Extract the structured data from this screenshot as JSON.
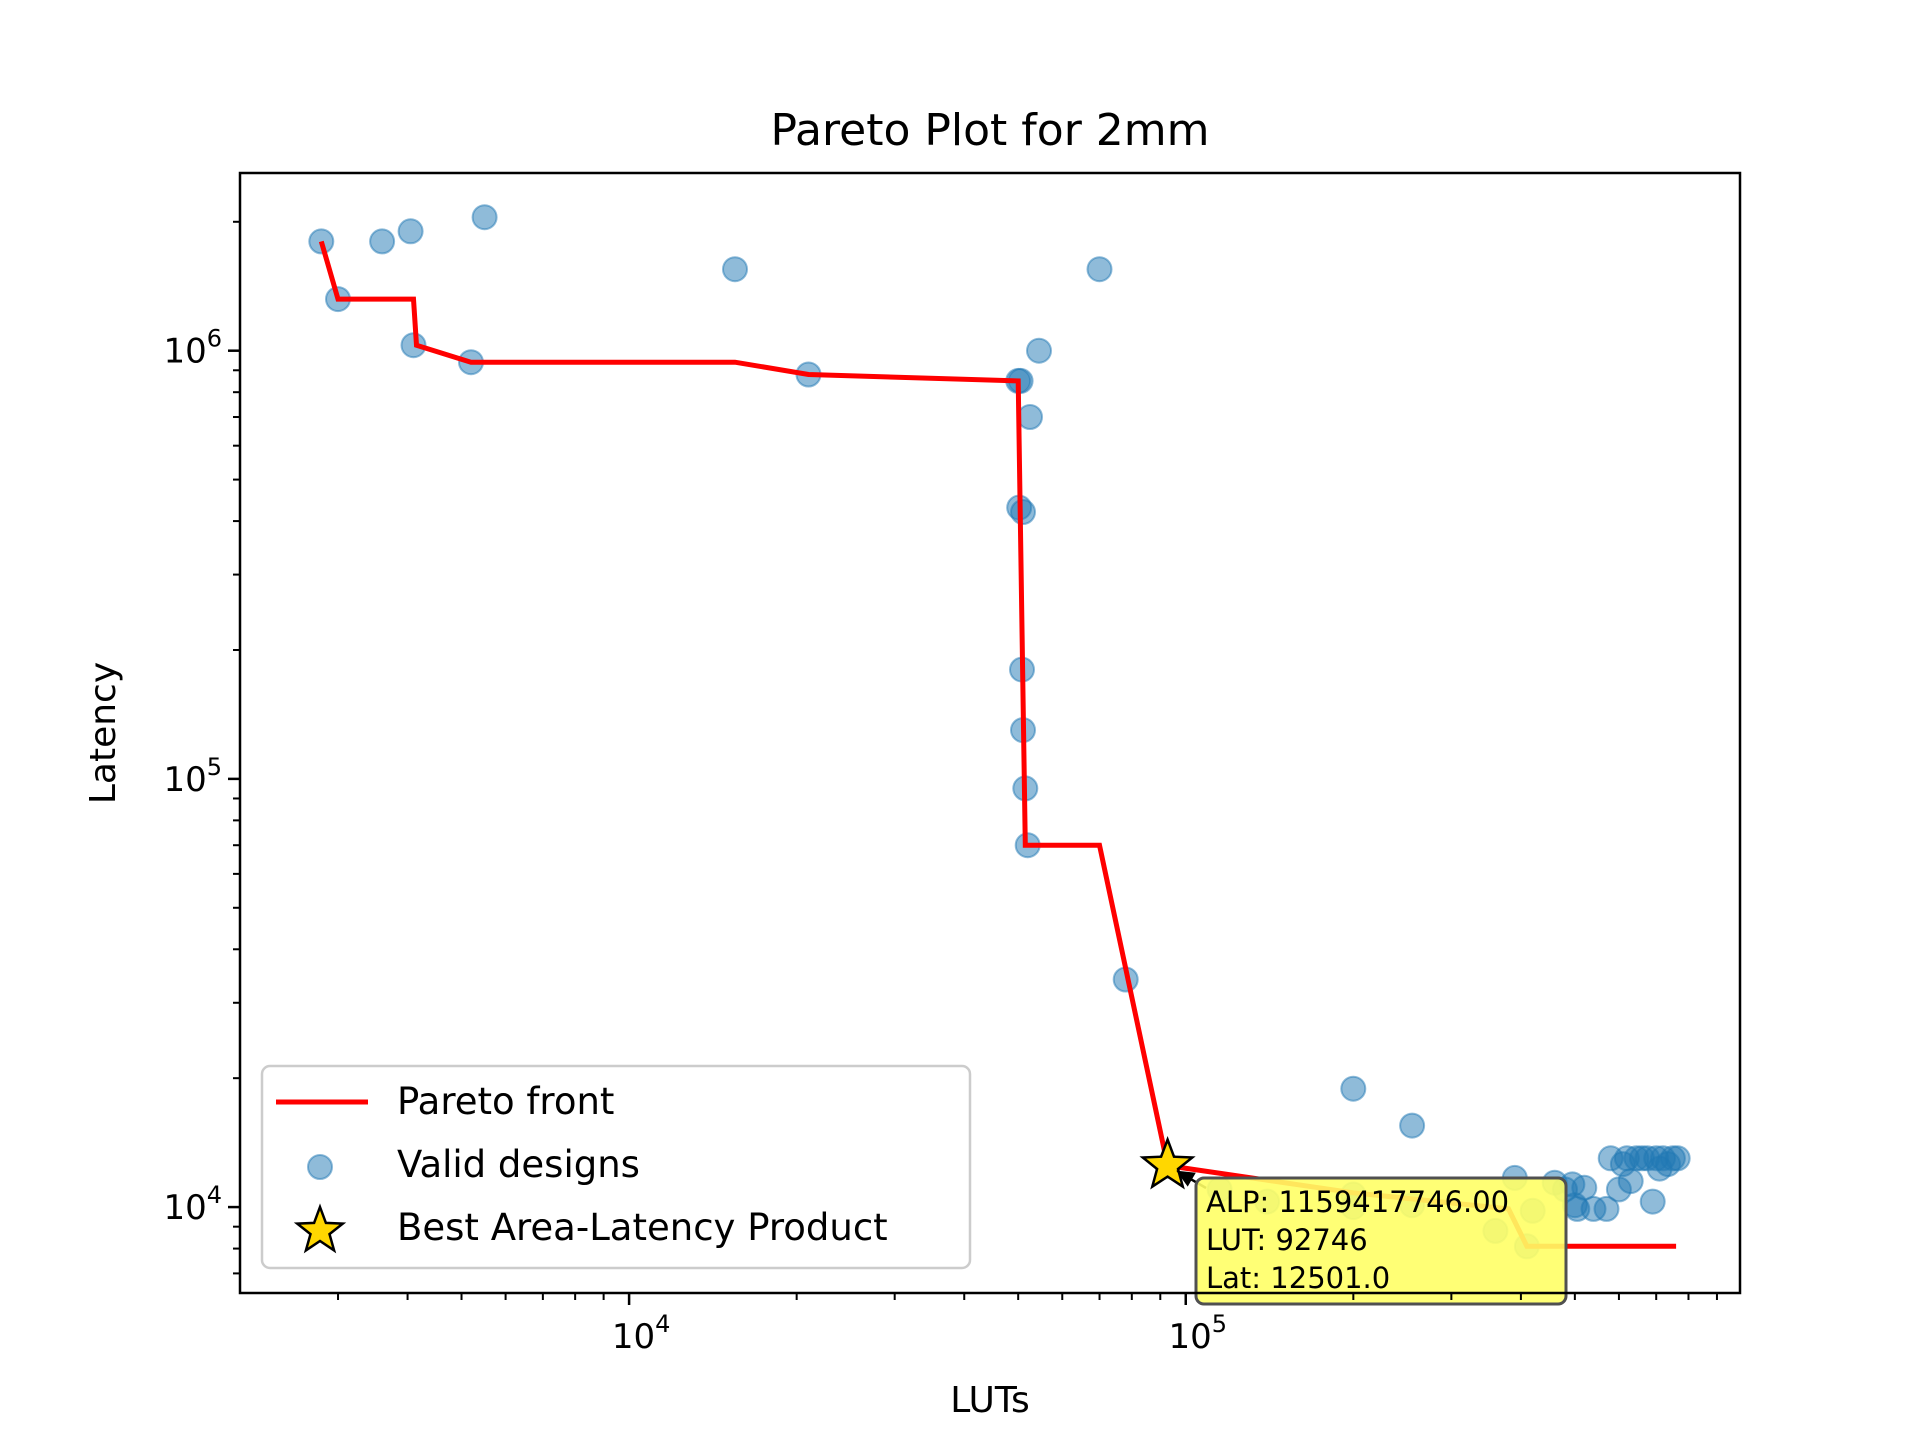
{
  "chart_data": {
    "type": "scatter",
    "title": "Pareto Plot for 2mm",
    "xlabel": "LUTs",
    "ylabel": "Latency",
    "x_scale": "log",
    "y_scale": "log",
    "xlim": [
      2000,
      990000
    ],
    "ylim": [
      6300,
      2600000
    ],
    "x_ticks": [
      {
        "value": 10000,
        "base": "10",
        "exp": "4"
      },
      {
        "value": 100000,
        "base": "10",
        "exp": "5"
      }
    ],
    "y_ticks": [
      {
        "value": 10000,
        "base": "10",
        "exp": "4"
      },
      {
        "value": 100000,
        "base": "10",
        "exp": "5"
      },
      {
        "value": 1000000,
        "base": "10",
        "exp": "6"
      }
    ],
    "grid": false,
    "legend_position": "lower-left",
    "legend": [
      {
        "key": "pareto",
        "label": "Pareto front"
      },
      {
        "key": "valid",
        "label": "Valid designs"
      },
      {
        "key": "best",
        "label": "Best Area-Latency Product"
      }
    ],
    "pareto_front": [
      [
        2800,
        1800000
      ],
      [
        3000,
        1320000
      ],
      [
        4100,
        1320000
      ],
      [
        4150,
        1030000
      ],
      [
        5200,
        940000
      ],
      [
        15500,
        940000
      ],
      [
        21000,
        880000
      ],
      [
        50000,
        850000
      ],
      [
        51500,
        70000
      ],
      [
        70000,
        70000
      ],
      [
        92746,
        12501
      ],
      [
        200000,
        10800
      ],
      [
        380000,
        9900
      ],
      [
        410000,
        8100
      ],
      [
        760000,
        8100
      ]
    ],
    "valid_designs": [
      [
        2800,
        1800000
      ],
      [
        3000,
        1320000
      ],
      [
        3600,
        1800000
      ],
      [
        4050,
        1900000
      ],
      [
        4100,
        1030000
      ],
      [
        5200,
        940000
      ],
      [
        5500,
        2050000
      ],
      [
        15500,
        1550000
      ],
      [
        21000,
        880000
      ],
      [
        50000,
        850000
      ],
      [
        50500,
        850000
      ],
      [
        50200,
        430000
      ],
      [
        51000,
        420000
      ],
      [
        50800,
        180000
      ],
      [
        51000,
        130000
      ],
      [
        51500,
        95000
      ],
      [
        52000,
        70000
      ],
      [
        52500,
        700000
      ],
      [
        54500,
        1000000
      ],
      [
        70000,
        1550000
      ],
      [
        78000,
        34000
      ],
      [
        92746,
        12501
      ],
      [
        115000,
        11000
      ],
      [
        140000,
        10300
      ],
      [
        200000,
        10700
      ],
      [
        200000,
        18900
      ],
      [
        200000,
        10000
      ],
      [
        255000,
        15500
      ],
      [
        255000,
        10100
      ],
      [
        360000,
        8800
      ],
      [
        390000,
        11700
      ],
      [
        410000,
        8100
      ],
      [
        420000,
        9800
      ],
      [
        460000,
        11400
      ],
      [
        480000,
        11000
      ],
      [
        495000,
        11300
      ],
      [
        500000,
        10100
      ],
      [
        505000,
        9900
      ],
      [
        520000,
        11100
      ],
      [
        540000,
        9900
      ],
      [
        570000,
        9900
      ],
      [
        580000,
        13000
      ],
      [
        600000,
        11000
      ],
      [
        610000,
        12600
      ],
      [
        620000,
        13000
      ],
      [
        630000,
        11500
      ],
      [
        645000,
        13000
      ],
      [
        660000,
        13000
      ],
      [
        675000,
        13000
      ],
      [
        690000,
        10300
      ],
      [
        700000,
        13000
      ],
      [
        710000,
        12300
      ],
      [
        720000,
        13000
      ],
      [
        735000,
        12600
      ],
      [
        750000,
        13000
      ],
      [
        765000,
        13000
      ]
    ],
    "best_point": {
      "lut": 92746,
      "latency": 12501
    },
    "annotation_lines": [
      "ALP: 1159417746.00",
      "LUT: 92746",
      "Lat: 12501.0"
    ],
    "colors": {
      "pareto": "#ff0000",
      "valid": "#1f77b4",
      "best": "#ffd700",
      "annotation_bg": "#ffff66",
      "annotation_arrow": "#000000"
    }
  }
}
